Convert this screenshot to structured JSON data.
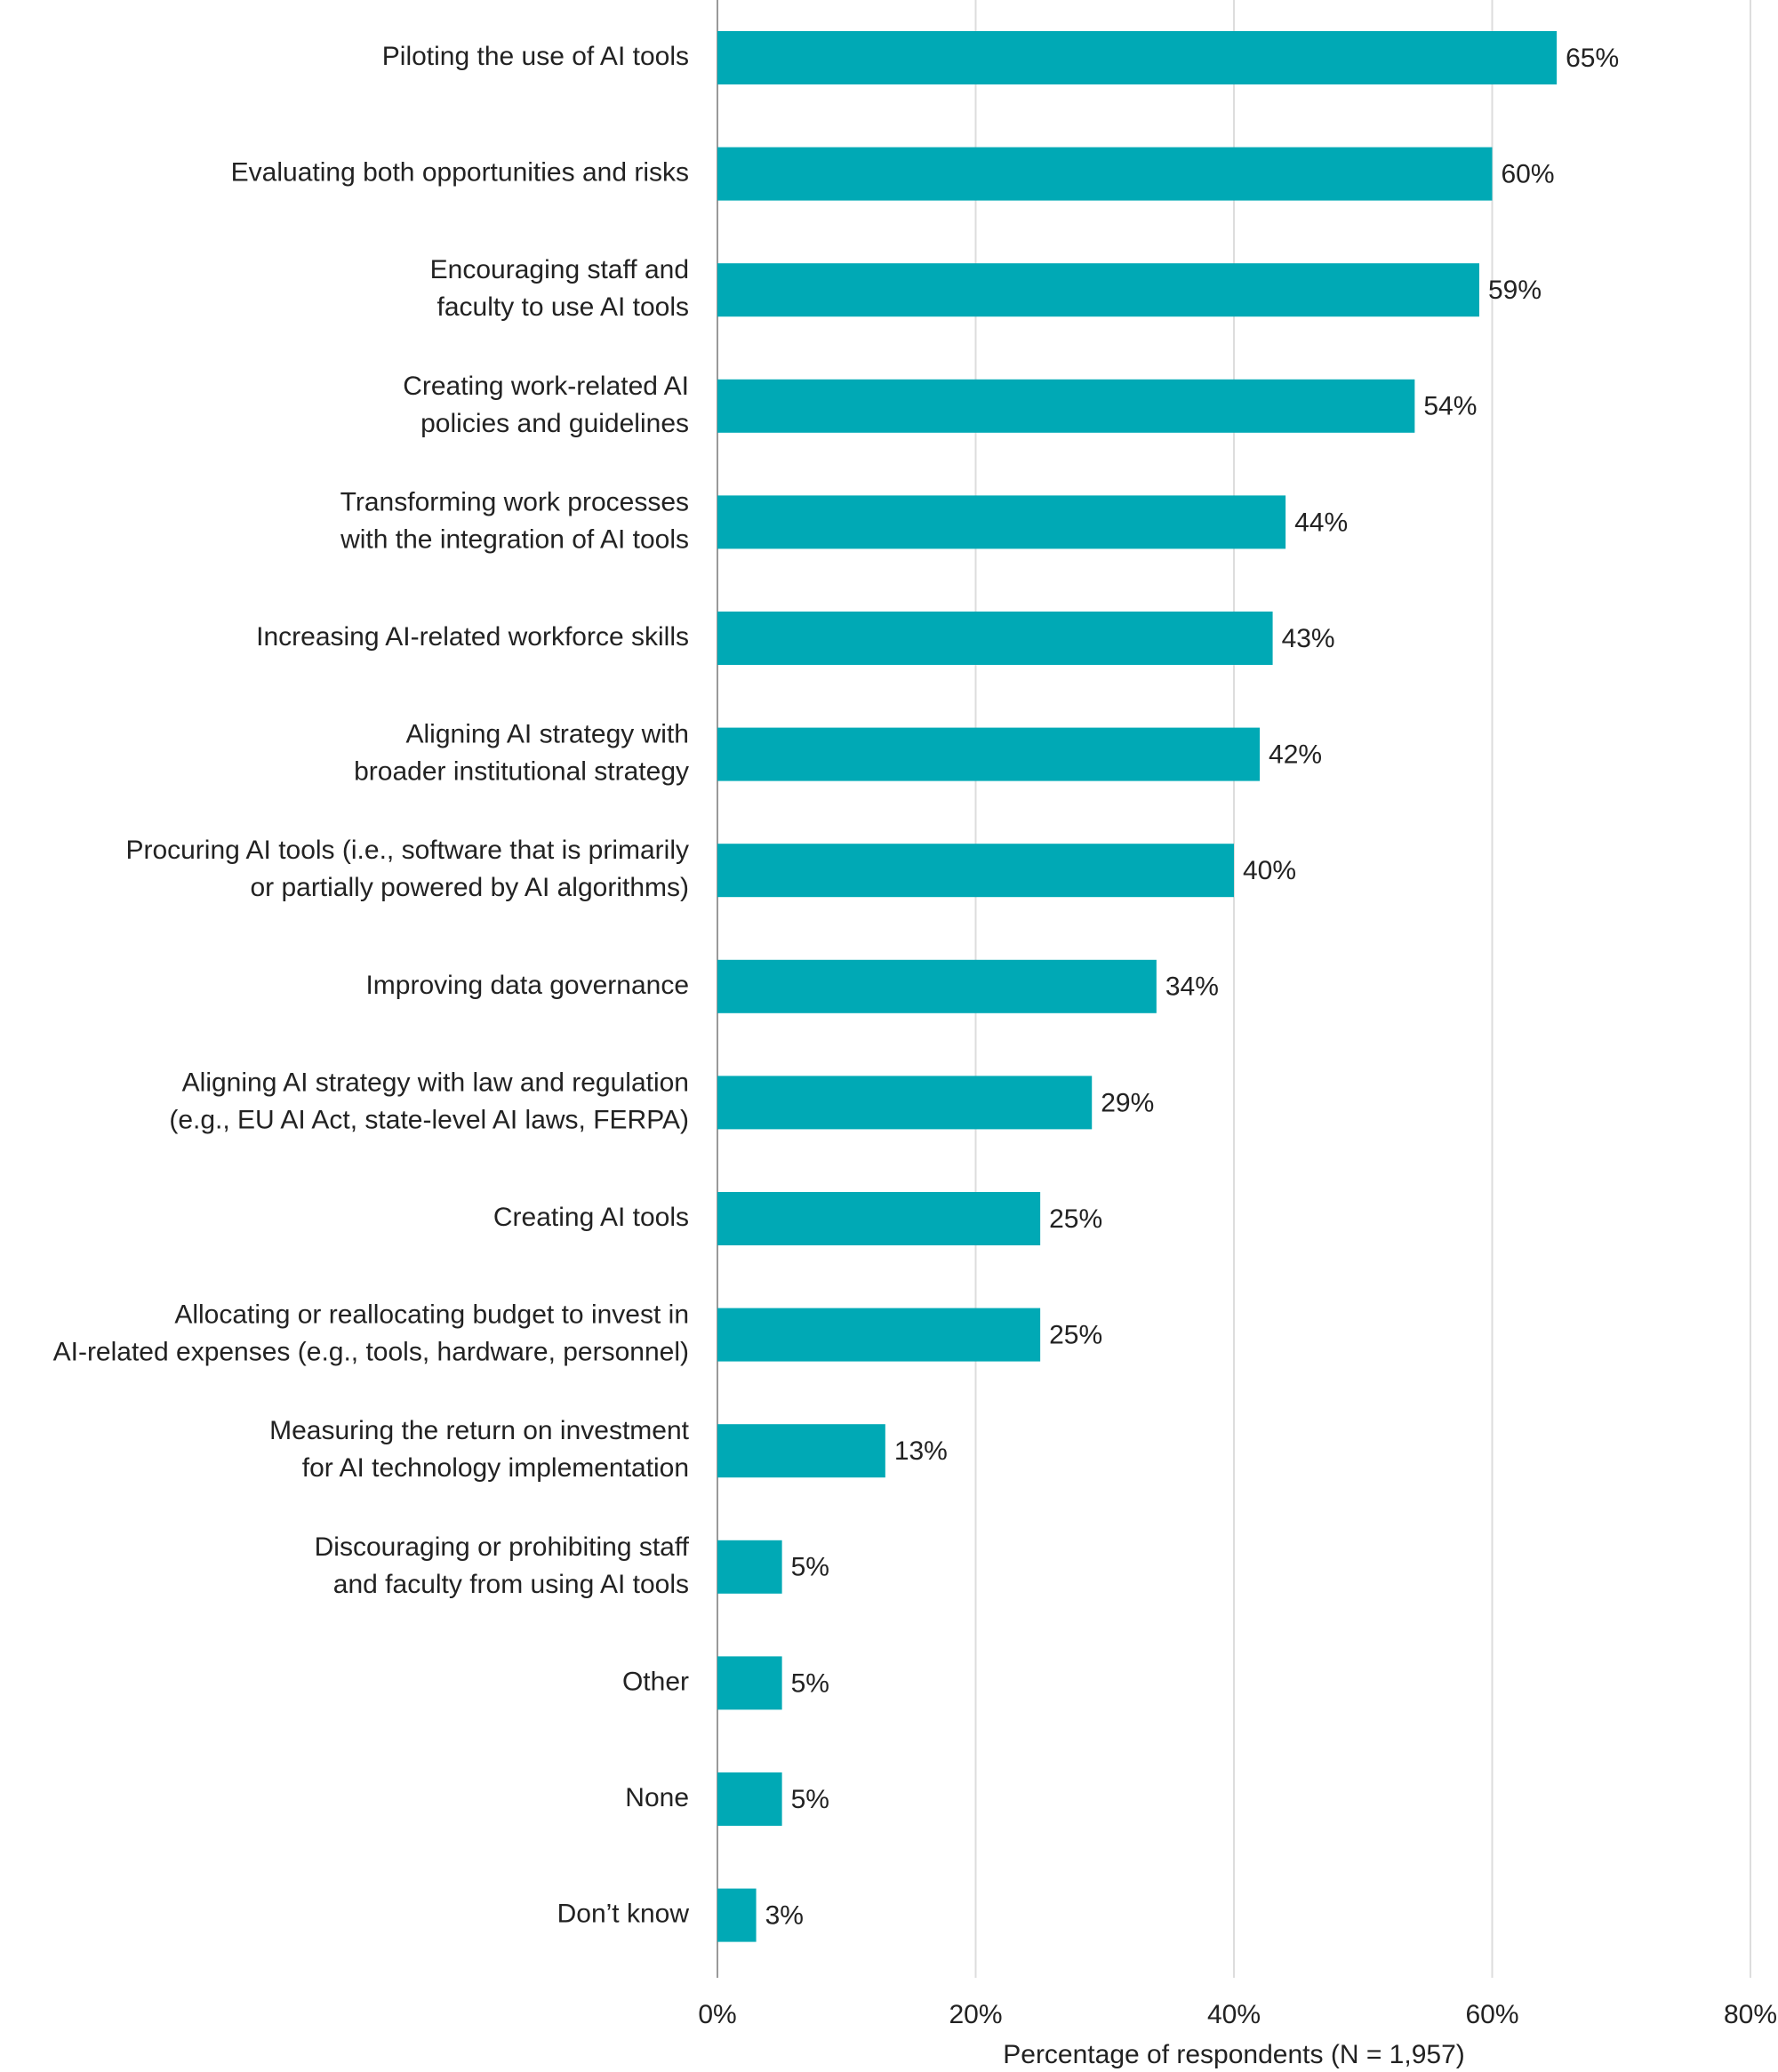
{
  "chart_data": {
    "type": "bar",
    "orientation": "horizontal",
    "categories": [
      "Piloting the use of AI tools",
      "Evaluating both opportunities and risks",
      "Encouraging staff and\nfaculty to use AI tools",
      "Creating work-related AI\npolicies and guidelines",
      "Transforming work processes\nwith the integration of AI tools",
      "Increasing AI-related workforce skills",
      "Aligning AI strategy with\nbroader institutional strategy",
      "Procuring AI tools (i.e., software that is primarily\nor partially powered by AI algorithms)",
      "Improving data governance",
      "Aligning AI strategy with law and regulation\n(e.g., EU AI Act, state-level AI laws, FERPA)",
      "Creating AI tools",
      "Allocating or reallocating budget to invest in\nAI-related expenses (e.g., tools, hardware, personnel)",
      "Measuring the return on investment\nfor AI technology implementation",
      "Discouraging or prohibiting staff\nand faculty from using AI tools",
      "Other",
      "None",
      "Don’t know"
    ],
    "values": [
      65,
      60,
      59,
      54,
      44,
      43,
      42,
      40,
      34,
      29,
      25,
      25,
      13,
      5,
      5,
      5,
      3
    ],
    "value_labels": [
      "65%",
      "60%",
      "59%",
      "54%",
      "44%",
      "43%",
      "42%",
      "40%",
      "34%",
      "29%",
      "25%",
      "25%",
      "13%",
      "5%",
      "5%",
      "5%",
      "3%"
    ],
    "color": "#00a9b5",
    "xlim": [
      0,
      80
    ],
    "xticks": [
      {
        "value": 0,
        "label": "0%"
      },
      {
        "value": 20,
        "label": "20%"
      },
      {
        "value": 40,
        "label": "40%"
      },
      {
        "value": 60,
        "label": "60%"
      },
      {
        "value": 80,
        "label": "80%"
      }
    ],
    "xlabel": "Percentage of respondents (N = 1,957)",
    "grid": true
  }
}
